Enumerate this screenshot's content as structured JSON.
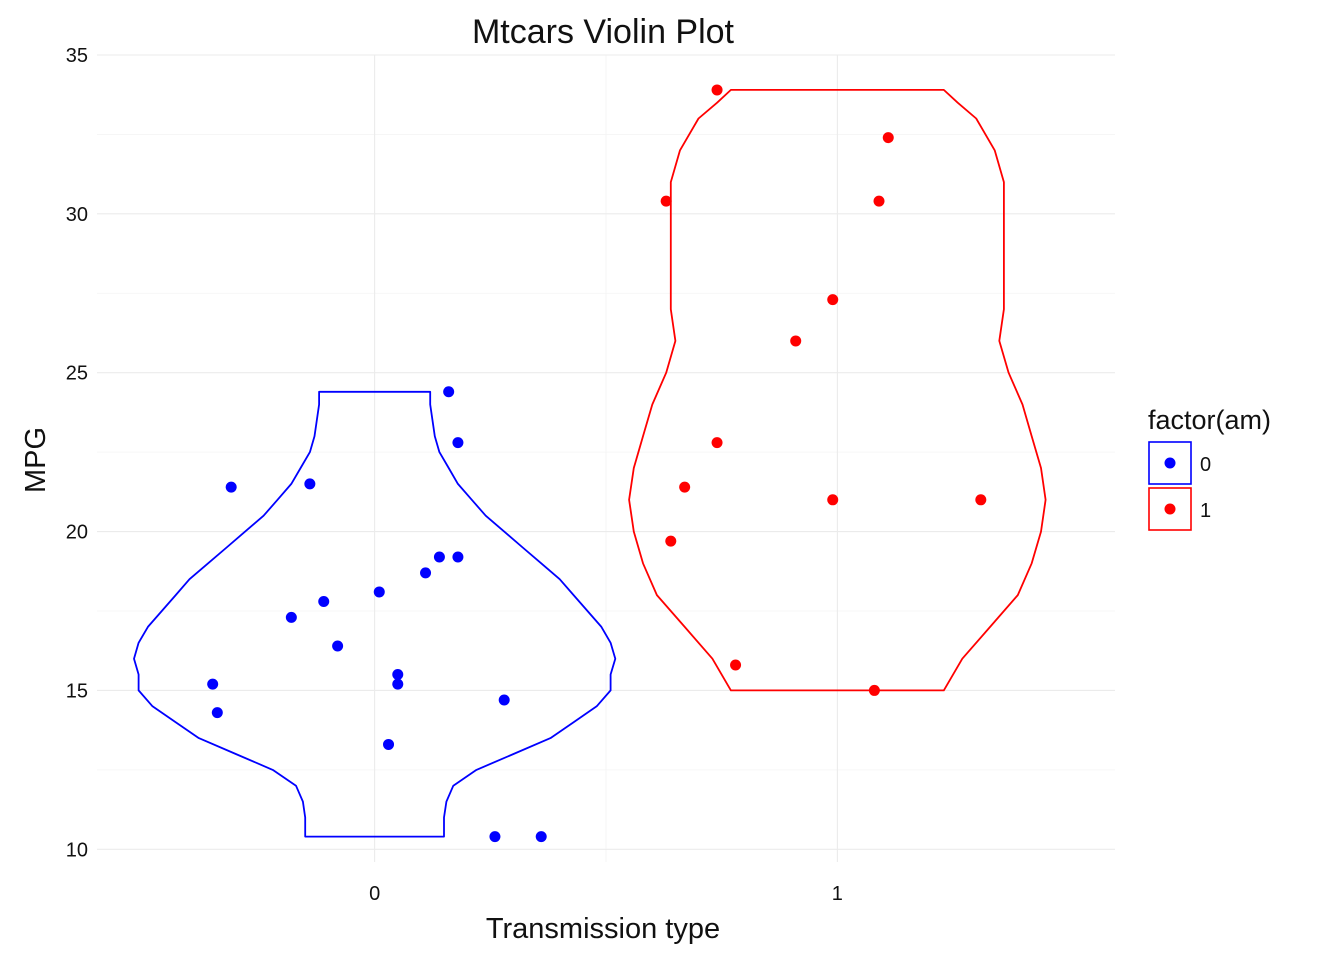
{
  "chart_data": {
    "type": "violin",
    "title": "Mtcars Violin Plot",
    "xlabel": "Transmission type",
    "ylabel": "MPG",
    "categories": [
      "0",
      "1"
    ],
    "ylim": [
      9.6,
      35
    ],
    "yticks": [
      10,
      15,
      20,
      25,
      30,
      35
    ],
    "grid": true,
    "legend": {
      "title": "factor(am)",
      "position": "right",
      "entries": [
        {
          "label": "0",
          "color": "#0000ff"
        },
        {
          "label": "1",
          "color": "#ff0000"
        }
      ]
    },
    "series": [
      {
        "name": "0",
        "category": "0",
        "color": "#0000ff",
        "violin_halfwidth": [
          [
            10.4,
            0.15
          ],
          [
            11.0,
            0.15
          ],
          [
            11.5,
            0.155
          ],
          [
            12.0,
            0.17
          ],
          [
            12.5,
            0.22
          ],
          [
            13.0,
            0.3
          ],
          [
            13.5,
            0.38
          ],
          [
            14.0,
            0.43
          ],
          [
            14.5,
            0.48
          ],
          [
            15.0,
            0.51
          ],
          [
            15.5,
            0.51
          ],
          [
            16.0,
            0.52
          ],
          [
            16.5,
            0.51
          ],
          [
            17.0,
            0.49
          ],
          [
            17.5,
            0.46
          ],
          [
            18.0,
            0.43
          ],
          [
            18.5,
            0.4
          ],
          [
            19.0,
            0.36
          ],
          [
            19.5,
            0.32
          ],
          [
            20.0,
            0.28
          ],
          [
            20.5,
            0.24
          ],
          [
            21.0,
            0.21
          ],
          [
            21.5,
            0.18
          ],
          [
            22.0,
            0.16
          ],
          [
            22.5,
            0.14
          ],
          [
            23.0,
            0.13
          ],
          [
            23.5,
            0.125
          ],
          [
            24.0,
            0.12
          ],
          [
            24.4,
            0.12
          ]
        ],
        "points": [
          {
            "x": -0.31,
            "y": 21.4
          },
          {
            "x": -0.14,
            "y": 21.5
          },
          {
            "x": 0.16,
            "y": 24.4
          },
          {
            "x": 0.18,
            "y": 22.8
          },
          {
            "x": 0.01,
            "y": 18.1
          },
          {
            "x": 0.11,
            "y": 18.7
          },
          {
            "x": 0.14,
            "y": 19.2
          },
          {
            "x": 0.18,
            "y": 19.2
          },
          {
            "x": -0.11,
            "y": 17.8
          },
          {
            "x": -0.18,
            "y": 17.3
          },
          {
            "x": -0.08,
            "y": 16.4
          },
          {
            "x": 0.05,
            "y": 15.5
          },
          {
            "x": 0.05,
            "y": 15.2
          },
          {
            "x": -0.35,
            "y": 15.2
          },
          {
            "x": -0.34,
            "y": 14.3
          },
          {
            "x": 0.28,
            "y": 14.7
          },
          {
            "x": 0.03,
            "y": 13.3
          },
          {
            "x": 0.26,
            "y": 10.4
          },
          {
            "x": 0.36,
            "y": 10.4
          }
        ]
      },
      {
        "name": "1",
        "category": "1",
        "color": "#ff0000",
        "violin_halfwidth": [
          [
            15.0,
            0.23
          ],
          [
            16.0,
            0.27
          ],
          [
            17.0,
            0.33
          ],
          [
            18.0,
            0.39
          ],
          [
            19.0,
            0.42
          ],
          [
            20.0,
            0.44
          ],
          [
            21.0,
            0.45
          ],
          [
            22.0,
            0.44
          ],
          [
            23.0,
            0.42
          ],
          [
            24.0,
            0.4
          ],
          [
            25.0,
            0.37
          ],
          [
            26.0,
            0.35
          ],
          [
            27.0,
            0.36
          ],
          [
            28.0,
            0.36
          ],
          [
            29.0,
            0.36
          ],
          [
            30.0,
            0.36
          ],
          [
            31.0,
            0.36
          ],
          [
            32.0,
            0.34
          ],
          [
            33.0,
            0.3
          ],
          [
            33.5,
            0.26
          ],
          [
            33.9,
            0.23
          ]
        ],
        "points": [
          {
            "x": 0.74,
            "y": 33.9
          },
          {
            "x": 1.11,
            "y": 32.4
          },
          {
            "x": 0.63,
            "y": 30.4
          },
          {
            "x": 1.09,
            "y": 30.4
          },
          {
            "x": 0.99,
            "y": 27.3
          },
          {
            "x": 0.91,
            "y": 26.0
          },
          {
            "x": 0.74,
            "y": 22.8
          },
          {
            "x": 0.67,
            "y": 21.4
          },
          {
            "x": 0.99,
            "y": 21.0
          },
          {
            "x": 1.31,
            "y": 21.0
          },
          {
            "x": 0.64,
            "y": 19.7
          },
          {
            "x": 0.78,
            "y": 15.8
          },
          {
            "x": 1.08,
            "y": 15.0
          }
        ]
      }
    ]
  }
}
